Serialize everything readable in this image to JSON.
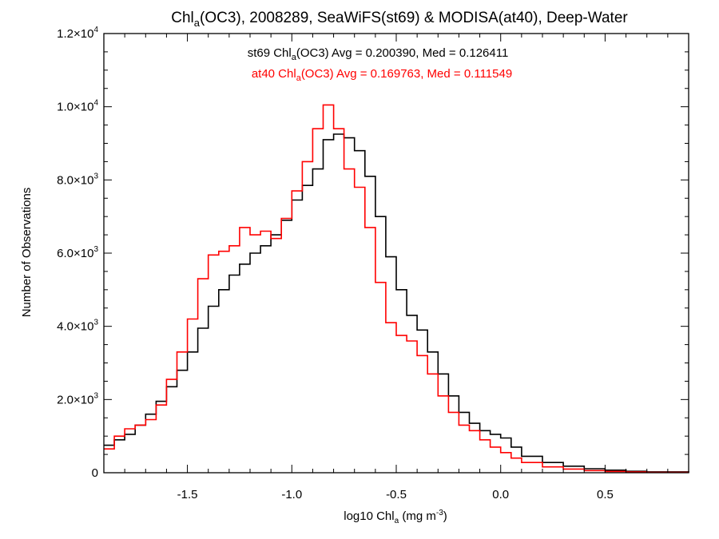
{
  "chart_data": {
    "type": "line",
    "title": {
      "prefix": "Chl",
      "sub": "a",
      "suffix": "(OC3), 2008289, SeaWiFS(st69) & MODISA(at40), Deep-Water"
    },
    "xlabel": {
      "prefix": "log10 Chl",
      "sub": "a",
      "mid": " (mg m",
      "sup": "-3",
      "suffix": ")"
    },
    "ylabel": "Number of Observations",
    "xlim": [
      -1.9,
      0.9
    ],
    "ylim": [
      0,
      12000
    ],
    "x_ticks": [
      {
        "value": -1.5,
        "label": "-1.5"
      },
      {
        "value": -1.0,
        "label": "-1.0"
      },
      {
        "value": -0.5,
        "label": "-0.5"
      },
      {
        "value": 0.0,
        "label": "0.0"
      },
      {
        "value": 0.5,
        "label": "0.5"
      }
    ],
    "y_ticks": [
      {
        "value": 0,
        "mantissa": "0",
        "exp": ""
      },
      {
        "value": 2000,
        "mantissa": "2.0×10",
        "exp": "3"
      },
      {
        "value": 4000,
        "mantissa": "4.0×10",
        "exp": "3"
      },
      {
        "value": 6000,
        "mantissa": "6.0×10",
        "exp": "3"
      },
      {
        "value": 8000,
        "mantissa": "8.0×10",
        "exp": "3"
      },
      {
        "value": 10000,
        "mantissa": "1.0×10",
        "exp": "4"
      },
      {
        "value": 12000,
        "mantissa": "1.2×10",
        "exp": "4"
      }
    ],
    "legend_placement": "top-center",
    "colors": {
      "st69": "#000000",
      "at40": "#ff0000"
    },
    "series": [
      {
        "name": "st69",
        "legend": {
          "prefix": "st69 Chl",
          "sub": "a",
          "suffix": "(OC3) Avg = 0.200390, Med = 0.126411"
        },
        "points": [
          [
            -1.9,
            750
          ],
          [
            -1.85,
            900
          ],
          [
            -1.8,
            1050
          ],
          [
            -1.75,
            1300
          ],
          [
            -1.7,
            1600
          ],
          [
            -1.65,
            1950
          ],
          [
            -1.6,
            2350
          ],
          [
            -1.55,
            2800
          ],
          [
            -1.5,
            3300
          ],
          [
            -1.45,
            3950
          ],
          [
            -1.4,
            4550
          ],
          [
            -1.35,
            5000
          ],
          [
            -1.3,
            5400
          ],
          [
            -1.25,
            5700
          ],
          [
            -1.2,
            6000
          ],
          [
            -1.15,
            6200
          ],
          [
            -1.1,
            6500
          ],
          [
            -1.05,
            6900
          ],
          [
            -1.0,
            7450
          ],
          [
            -0.95,
            7850
          ],
          [
            -0.9,
            8300
          ],
          [
            -0.85,
            9100
          ],
          [
            -0.8,
            9250
          ],
          [
            -0.75,
            9150
          ],
          [
            -0.7,
            8800
          ],
          [
            -0.65,
            8100
          ],
          [
            -0.6,
            7000
          ],
          [
            -0.55,
            5900
          ],
          [
            -0.5,
            5000
          ],
          [
            -0.45,
            4300
          ],
          [
            -0.4,
            3900
          ],
          [
            -0.35,
            3300
          ],
          [
            -0.3,
            2700
          ],
          [
            -0.25,
            2100
          ],
          [
            -0.2,
            1650
          ],
          [
            -0.15,
            1350
          ],
          [
            -0.1,
            1150
          ],
          [
            -0.05,
            1050
          ],
          [
            0.0,
            950
          ],
          [
            0.05,
            700
          ],
          [
            0.1,
            450
          ],
          [
            0.2,
            280
          ],
          [
            0.3,
            180
          ],
          [
            0.4,
            110
          ],
          [
            0.5,
            70
          ],
          [
            0.6,
            40
          ],
          [
            0.7,
            25
          ],
          [
            0.9,
            10
          ]
        ]
      },
      {
        "name": "at40",
        "legend": {
          "prefix": "at40 Chl",
          "sub": "a",
          "suffix": "(OC3) Avg = 0.169763, Med = 0.111549"
        },
        "points": [
          [
            -1.9,
            650
          ],
          [
            -1.85,
            1000
          ],
          [
            -1.8,
            1200
          ],
          [
            -1.75,
            1300
          ],
          [
            -1.7,
            1450
          ],
          [
            -1.65,
            1850
          ],
          [
            -1.6,
            2550
          ],
          [
            -1.55,
            3300
          ],
          [
            -1.5,
            4200
          ],
          [
            -1.45,
            5300
          ],
          [
            -1.4,
            5950
          ],
          [
            -1.35,
            6050
          ],
          [
            -1.3,
            6200
          ],
          [
            -1.25,
            6700
          ],
          [
            -1.2,
            6500
          ],
          [
            -1.15,
            6600
          ],
          [
            -1.1,
            6400
          ],
          [
            -1.05,
            6950
          ],
          [
            -1.0,
            7700
          ],
          [
            -0.95,
            8500
          ],
          [
            -0.9,
            9400
          ],
          [
            -0.85,
            10050
          ],
          [
            -0.8,
            9400
          ],
          [
            -0.75,
            8300
          ],
          [
            -0.7,
            7800
          ],
          [
            -0.65,
            6700
          ],
          [
            -0.6,
            5200
          ],
          [
            -0.55,
            4100
          ],
          [
            -0.5,
            3750
          ],
          [
            -0.45,
            3600
          ],
          [
            -0.4,
            3200
          ],
          [
            -0.35,
            2700
          ],
          [
            -0.3,
            2100
          ],
          [
            -0.25,
            1650
          ],
          [
            -0.2,
            1300
          ],
          [
            -0.15,
            1150
          ],
          [
            -0.1,
            900
          ],
          [
            -0.05,
            700
          ],
          [
            0.0,
            550
          ],
          [
            0.05,
            400
          ],
          [
            0.1,
            280
          ],
          [
            0.2,
            160
          ],
          [
            0.3,
            100
          ],
          [
            0.4,
            60
          ],
          [
            0.5,
            35
          ],
          [
            0.6,
            20
          ],
          [
            0.7,
            12
          ],
          [
            0.9,
            5
          ]
        ]
      }
    ]
  }
}
